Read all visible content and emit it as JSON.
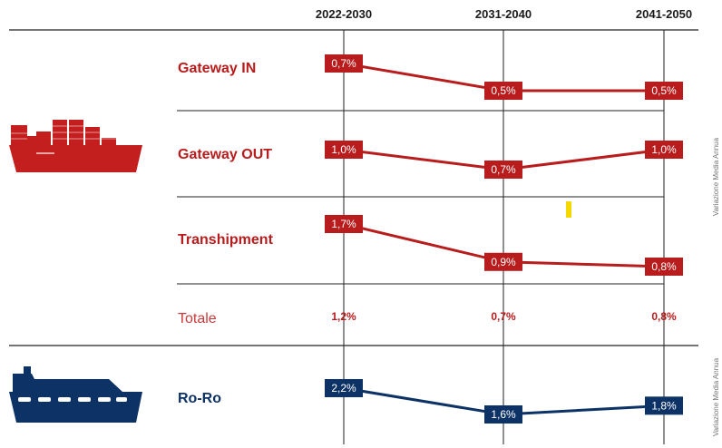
{
  "colors": {
    "red": "#b81c1c",
    "red_light": "#d93a3a",
    "blue": "#0d3266",
    "grid": "#222222",
    "accent_yellow": "#f5d800"
  },
  "icons": {
    "container_ship": "container-ship-icon",
    "roro_ship": "roro-ship-icon"
  },
  "side_label_top": "Variazione Media Annua",
  "side_label_bottom": "Variazione Media Annua",
  "chart_data": [
    {
      "type": "line",
      "categories": [
        "2022-2030",
        "2031-2040",
        "2041-2050"
      ],
      "series": [
        {
          "name": "Gateway IN",
          "values": [
            0.7,
            0.5,
            0.5
          ],
          "labels": [
            "0,7%",
            "0,5%",
            "0,5%"
          ]
        },
        {
          "name": "Gateway OUT",
          "values": [
            1.0,
            0.7,
            1.0
          ],
          "labels": [
            "1,0%",
            "0,7%",
            "1,0%"
          ]
        },
        {
          "name": "Transhipment",
          "values": [
            1.7,
            0.9,
            0.8
          ],
          "labels": [
            "1,7%",
            "0,9%",
            "0,8%"
          ]
        }
      ],
      "totals": {
        "label": "Totale",
        "values": [
          1.2,
          0.7,
          0.8
        ],
        "labels": [
          "1,2%",
          "0,7%",
          "0,8%"
        ]
      }
    },
    {
      "type": "line",
      "categories": [
        "2022-2030",
        "2031-2040",
        "2041-2050"
      ],
      "series": [
        {
          "name": "Ro-Ro",
          "values": [
            2.2,
            1.6,
            1.8
          ],
          "labels": [
            "2,2%",
            "1,6%",
            "1,8%"
          ]
        }
      ]
    }
  ]
}
